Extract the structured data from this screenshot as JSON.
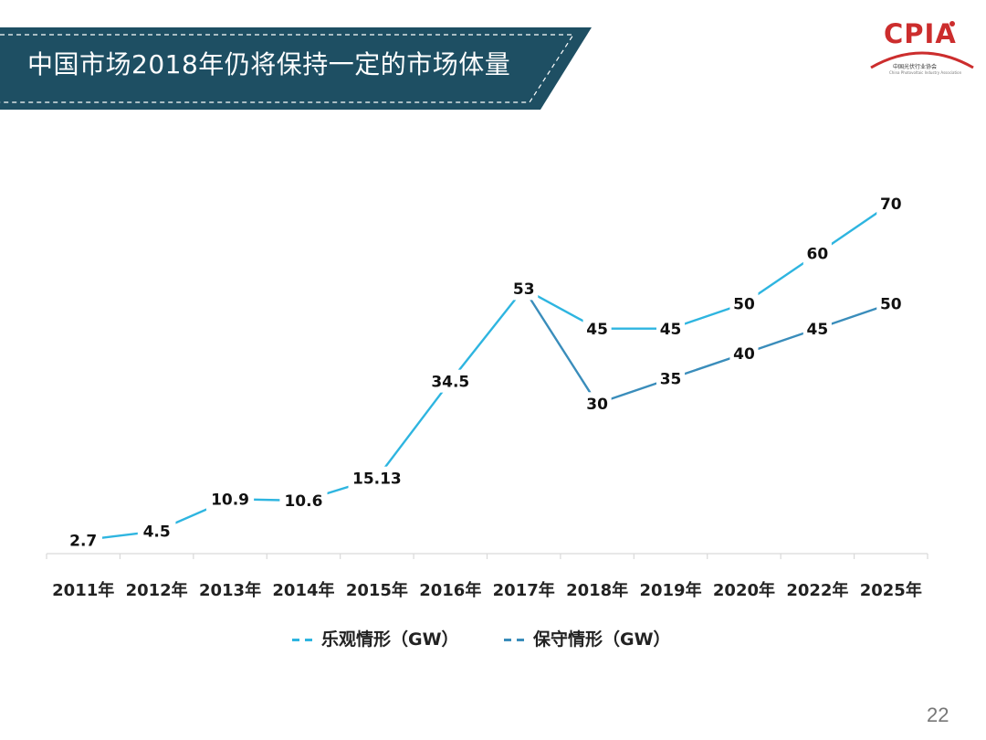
{
  "header": {
    "title": "中国市场2018年仍将保持一定的市场体量",
    "banner_color": "#1e4f63"
  },
  "logo": {
    "text": "CPIA",
    "subtitle": "中国光伏行业协会",
    "subtitle_en": "China Photovoltaic Industry Association",
    "color": "#cc2d2d"
  },
  "page_number": "22",
  "chart_data": {
    "type": "line",
    "categories": [
      "2011年",
      "2012年",
      "2013年",
      "2014年",
      "2015年",
      "2016年",
      "2017年",
      "2018年",
      "2019年",
      "2020年",
      "2022年",
      "2025年"
    ],
    "series": [
      {
        "name": "乐观情形（GW）",
        "color": "#2eb5e0",
        "values": [
          2.7,
          4.5,
          10.9,
          10.6,
          15.13,
          34.5,
          53,
          45,
          45,
          50,
          60,
          70
        ],
        "labels": [
          "2.7",
          "4.5",
          "10.9",
          "10.6",
          "15.13",
          "34.5",
          "53",
          "45",
          "45",
          "50",
          "60",
          "70"
        ]
      },
      {
        "name": "保守情形（GW）",
        "color": "#3a8dbb",
        "values": [
          null,
          null,
          null,
          null,
          null,
          null,
          53,
          30,
          35,
          40,
          45,
          50
        ],
        "labels": [
          "",
          "",
          "",
          "",
          "",
          "",
          "",
          "30",
          "35",
          "40",
          "45",
          "50"
        ]
      }
    ],
    "title": "",
    "xlabel": "",
    "ylabel": "",
    "ylim": [
      0,
      76
    ],
    "grid": false,
    "legend": "bottom"
  }
}
